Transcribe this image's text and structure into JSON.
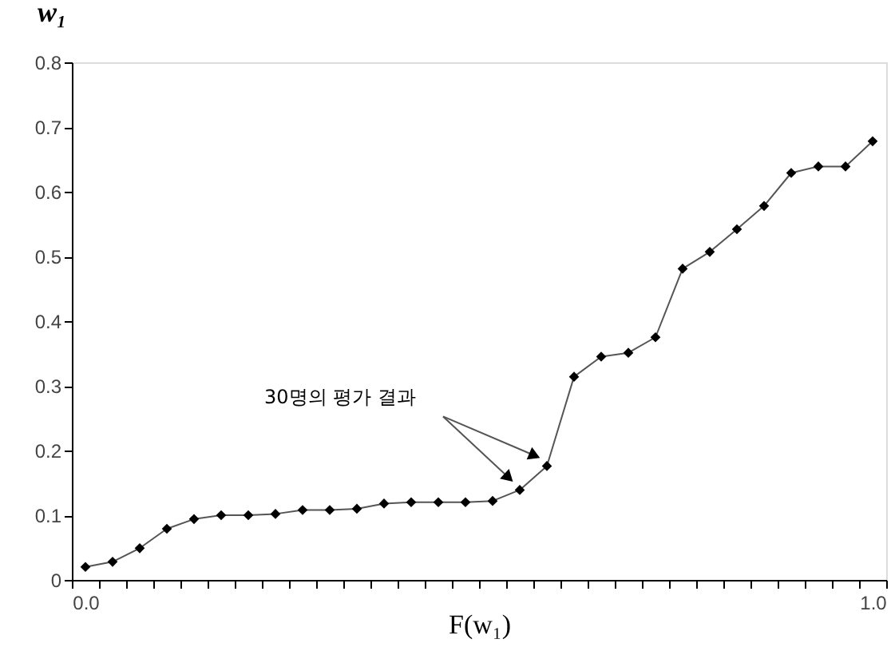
{
  "chart_data": {
    "type": "line",
    "xlabel": "F(w₁)",
    "ylabel": "w₁",
    "categories": [
      "0.0",
      null,
      null,
      null,
      null,
      null,
      null,
      null,
      null,
      null,
      null,
      null,
      null,
      null,
      null,
      null,
      null,
      null,
      null,
      null,
      null,
      null,
      null,
      null,
      null,
      null,
      null,
      null,
      null,
      "1.0"
    ],
    "series": [
      {
        "color": "#000000",
        "values": [
          0.02,
          0.028,
          0.049,
          0.079,
          0.094,
          0.1,
          0.1,
          0.102,
          0.108,
          0.108,
          0.11,
          0.118,
          0.12,
          0.12,
          0.12,
          0.122,
          0.139,
          0.176,
          0.314,
          0.345,
          0.351,
          0.375,
          0.481,
          0.507,
          0.542,
          0.578,
          0.629,
          0.639,
          0.639,
          0.678
        ]
      }
    ],
    "ylim": [
      0,
      0.8
    ],
    "yticks": [
      0,
      0.1,
      0.2,
      0.3,
      0.4,
      0.5,
      0.6,
      0.7,
      0.8
    ],
    "annotations": [
      "30명의 평가 결과"
    ],
    "marker": "diamond",
    "line_style": "solid",
    "grid": false
  }
}
